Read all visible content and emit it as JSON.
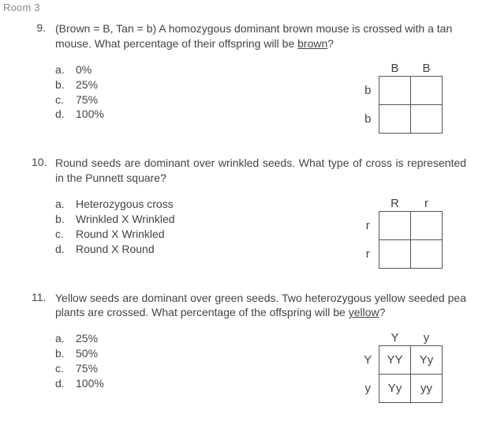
{
  "room_label": "Room 3",
  "q9": {
    "number": "9.",
    "prompt_pre": "(Brown = B, Tan = b) A homozygous dominant brown mouse is crossed with a tan mouse. What percentage of their offspring will be ",
    "prompt_underlined": "brown",
    "prompt_post": "?",
    "choices": {
      "a": {
        "letter": "a.",
        "text": "0%"
      },
      "b": {
        "letter": "b.",
        "text": "25%"
      },
      "c": {
        "letter": "c.",
        "text": "75%"
      },
      "d": {
        "letter": "d.",
        "text": "100%"
      }
    },
    "punnett": {
      "top1": "B",
      "top2": "B",
      "side1": "b",
      "side2": "b",
      "c11": "",
      "c12": "",
      "c21": "",
      "c22": ""
    }
  },
  "q10": {
    "number": "10.",
    "prompt": "Round seeds are dominant over wrinkled seeds. What type of cross is represented in the Punnett square?",
    "choices": {
      "a": {
        "letter": "a.",
        "text": "Heterozygous cross"
      },
      "b": {
        "letter": "b.",
        "text": "Wrinkled X Wrinkled"
      },
      "c": {
        "letter": "c.",
        "text": "Round X Wrinkled"
      },
      "d": {
        "letter": "d.",
        "text": "Round X Round"
      }
    },
    "punnett": {
      "top1": "R",
      "top2": "r",
      "side1": "r",
      "side2": "r",
      "c11": "",
      "c12": "",
      "c21": "",
      "c22": ""
    }
  },
  "q11": {
    "number": "11.",
    "prompt_pre": "Yellow seeds are dominant over green seeds. Two heterozygous yellow seeded pea plants are crossed. What percentage of the offspring will be ",
    "prompt_underlined": "yellow",
    "prompt_post": "?",
    "choices": {
      "a": {
        "letter": "a.",
        "text": "25%"
      },
      "b": {
        "letter": "b.",
        "text": "50%"
      },
      "c": {
        "letter": "c.",
        "text": "75%"
      },
      "d": {
        "letter": "d.",
        "text": "100%"
      }
    },
    "punnett": {
      "top1": "Y",
      "top2": "y",
      "side1": "Y",
      "side2": "y",
      "c11": "YY",
      "c12": "Yy",
      "c21": "Yy",
      "c22": "yy"
    }
  }
}
